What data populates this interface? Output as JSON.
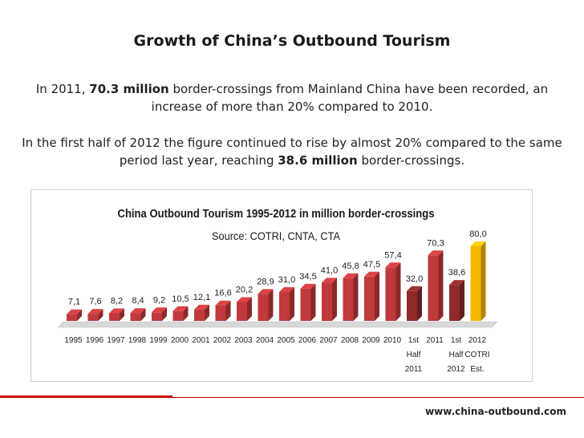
{
  "slide": {
    "title": "Growth of China’s Outbound Tourism",
    "para1_a": "In 2011, ",
    "para1_b": "70.3 million",
    "para1_c": " border-crossings from Mainland China have been recorded, an increase of more than 20% compared to 2010.",
    "para2_a": "In the first half of 2012 the figure continued to rise by almost 20% compared to the same period last year, reaching ",
    "para2_b": "38.6 million",
    "para2_c": " border-crossings.",
    "footer_url": "www.china-outbound.com"
  },
  "chart_data": {
    "type": "bar",
    "title": "China Outbound Tourism 1995-2012 in million border-crossings",
    "subtitle": "Source: COTRI, CNTA, CTA",
    "categories": [
      [
        "1995"
      ],
      [
        "1996"
      ],
      [
        "1997"
      ],
      [
        "1998"
      ],
      [
        "1999"
      ],
      [
        "2000"
      ],
      [
        "2001"
      ],
      [
        "2002"
      ],
      [
        "2003"
      ],
      [
        "2004"
      ],
      [
        "2005"
      ],
      [
        "2006"
      ],
      [
        "2007"
      ],
      [
        "2008"
      ],
      [
        "2009"
      ],
      [
        "2010"
      ],
      [
        "1st",
        "Half",
        "2011"
      ],
      [
        "2011"
      ],
      [
        "1st",
        "Half",
        "2012"
      ],
      [
        "2012",
        "COTRI",
        "Est."
      ]
    ],
    "values": [
      7.1,
      7.6,
      8.2,
      8.4,
      9.2,
      10.5,
      12.1,
      16.6,
      20.2,
      28.9,
      31.0,
      34.5,
      41.0,
      45.8,
      47.5,
      57.4,
      32.0,
      70.3,
      38.6,
      80.0
    ],
    "value_labels": [
      "7,1",
      "7,6",
      "8,2",
      "8,4",
      "9,2",
      "10,5",
      "12,1",
      "16,6",
      "20,2",
      "28,9",
      "31,0",
      "34,5",
      "41,0",
      "45,8",
      "47,5",
      "57,4",
      "32,0",
      "70,3",
      "38,6",
      "80,0"
    ],
    "bar_kinds": [
      "full",
      "full",
      "full",
      "full",
      "full",
      "full",
      "full",
      "full",
      "full",
      "full",
      "full",
      "full",
      "full",
      "full",
      "full",
      "full",
      "half",
      "full",
      "half",
      "estimate"
    ],
    "colors": {
      "full": "#c0393b",
      "half": "#8e2a2c",
      "estimate": "#f5b800"
    },
    "ylim": [
      0,
      80
    ],
    "grid": false,
    "legend": "none"
  }
}
